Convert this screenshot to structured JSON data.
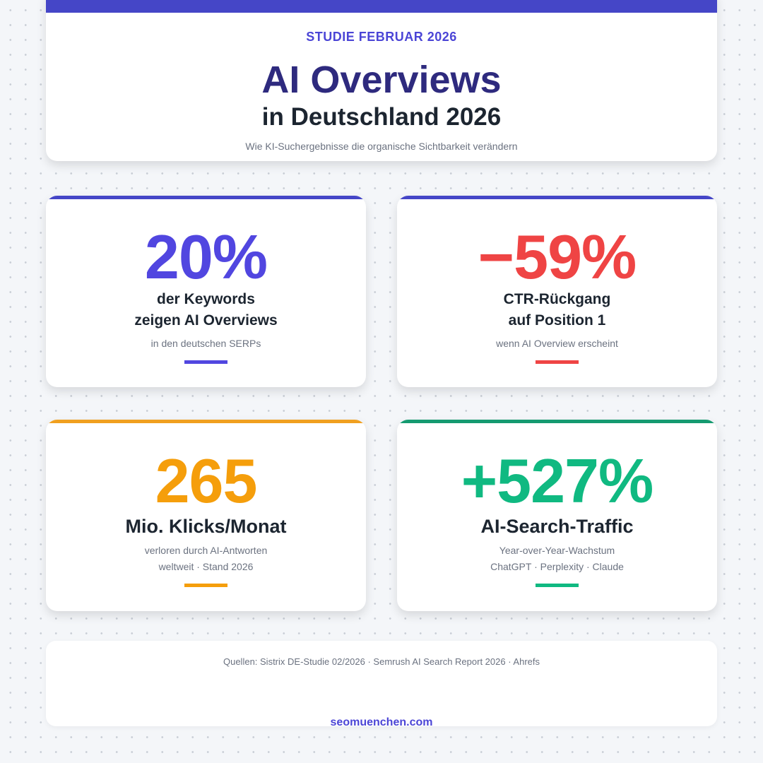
{
  "header": {
    "kicker": "STUDIE FEBRUAR 2026",
    "title": "AI Overviews",
    "title_line2": "in Deutschland 2026",
    "subtitle": "Wie KI-Suchergebnisse die organische Sichtbarkeit verändern",
    "accent": "#4546c7"
  },
  "stats": [
    {
      "value": "20%",
      "label1": "der Keywords",
      "label2": "zeigen AI Overviews",
      "note1": "in den deutschen SERPs",
      "color": "#5146e0"
    },
    {
      "value": "−59%",
      "label1": "CTR-Rückgang",
      "label2": "auf Position 1",
      "note1": "wenn AI Overview erscheint",
      "color": "#ef4444"
    },
    {
      "value": "265",
      "label1": "Mio. Klicks/Monat",
      "note1": "verloren durch AI-Antworten",
      "note2": "weltweit · Stand 2026",
      "color": "#f59e0b"
    },
    {
      "value": "+527%",
      "label1": "AI-Search-Traffic",
      "note1": "Year-over-Year-Wachstum",
      "note2": "ChatGPT · Perplexity · Claude",
      "color": "#10b981"
    }
  ],
  "footer": {
    "sources": "Quellen: Sistrix DE-Studie 02/2026 · Semrush AI Search Report 2026 · Ahrefs",
    "site": "seomuenchen.com"
  }
}
